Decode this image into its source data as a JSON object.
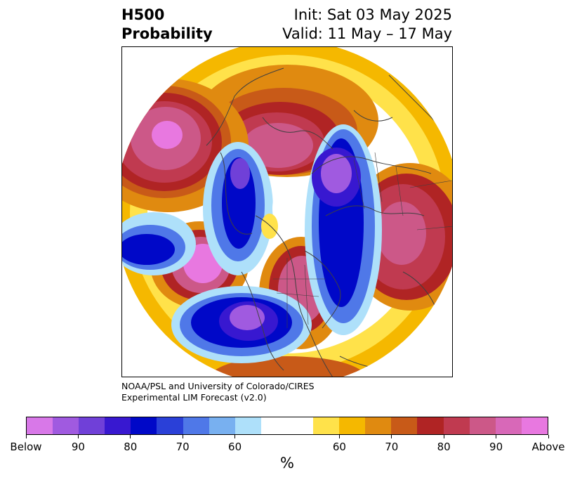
{
  "title": {
    "left_line1": "H500",
    "left_line2": "Probability",
    "right_line1": "Init: Sat 03 May 2025",
    "right_line2": "Valid: 11 May – 17 May"
  },
  "credit": {
    "line1": "NOAA/PSL and University of Colorado/CIRES",
    "line2": "Experimental LIM Forecast (v2.0)"
  },
  "colorbar": {
    "colors": [
      "#d878e8",
      "#a05ae0",
      "#7040d8",
      "#3818d0",
      "#0008c8",
      "#2a40d8",
      "#4f78e8",
      "#78b0f0",
      "#aee0fa",
      "#ffffff",
      "#ffffff",
      "#ffe24a",
      "#f5b800",
      "#e08a10",
      "#c85a18",
      "#b02424",
      "#c03a50",
      "#cc5888",
      "#d868b8",
      "#e878e0"
    ],
    "labels": [
      "Below",
      "90",
      "80",
      "70",
      "60",
      "60",
      "70",
      "80",
      "90",
      "Above"
    ],
    "unit": "%"
  }
}
